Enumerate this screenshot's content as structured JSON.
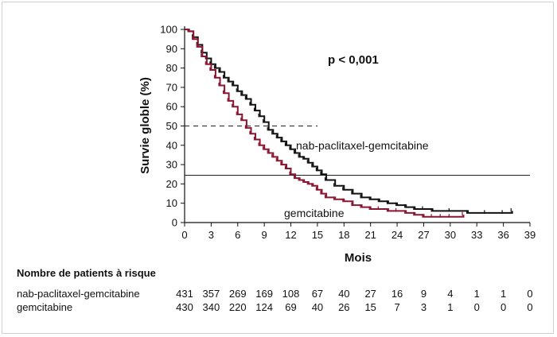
{
  "chart_data": {
    "type": "line",
    "title": "",
    "xlabel": "Mois",
    "ylabel": "Survie globle (%)",
    "xlim": [
      0,
      39
    ],
    "ylim": [
      0,
      100
    ],
    "x_ticks": [
      0,
      3,
      6,
      9,
      12,
      15,
      18,
      21,
      24,
      27,
      30,
      33,
      36,
      39
    ],
    "y_ticks": [
      0,
      10,
      20,
      30,
      40,
      50,
      60,
      70,
      80,
      90,
      100
    ],
    "grid": false,
    "annotation": "p < 0,001",
    "series": [
      {
        "name": "nab-paclitaxel-gemcitabine",
        "color": "#111111",
        "x": [
          0,
          0.5,
          1,
          1.5,
          2,
          2.5,
          3,
          3.5,
          4,
          4.5,
          5,
          5.5,
          6,
          6.5,
          7,
          7.5,
          8,
          8.5,
          9,
          9.5,
          10,
          10.5,
          11,
          11.5,
          12,
          12.5,
          13,
          13.5,
          14,
          14.5,
          15,
          15.5,
          16,
          17,
          18,
          19,
          20,
          21,
          22,
          23,
          24,
          25,
          26,
          27,
          28,
          30,
          32,
          34,
          36,
          37
        ],
        "y": [
          100,
          99,
          96,
          92,
          88,
          85,
          82,
          80,
          78,
          75,
          73,
          71,
          68,
          66,
          64,
          61,
          58,
          55,
          52,
          48,
          46,
          44,
          42,
          40,
          38,
          36,
          34,
          33,
          31,
          29,
          27,
          25,
          22,
          19,
          17,
          15,
          13,
          12,
          11,
          10,
          9,
          8,
          7,
          7,
          6,
          6,
          5,
          5,
          5,
          6
        ]
      },
      {
        "name": "gemcitabine",
        "color": "#8a1530",
        "x": [
          0,
          0.5,
          1,
          1.5,
          2,
          2.5,
          3,
          3.5,
          4,
          4.5,
          5,
          5.5,
          6,
          6.5,
          7,
          7.5,
          8,
          8.5,
          9,
          9.5,
          10,
          10.5,
          11,
          11.5,
          12,
          12.5,
          13,
          13.5,
          14,
          14.5,
          15,
          15.5,
          16,
          17,
          18,
          19,
          20,
          21,
          22,
          23,
          24,
          25,
          26,
          27,
          28,
          29,
          30,
          31.5
        ],
        "y": [
          100,
          99,
          95,
          91,
          86,
          82,
          79,
          75,
          71,
          67,
          63,
          60,
          56,
          53,
          49,
          46,
          43,
          40,
          38,
          36,
          34,
          32,
          30,
          28,
          25,
          23,
          22,
          21,
          20,
          19,
          17,
          15,
          13,
          12,
          11,
          9,
          8,
          7,
          7,
          6,
          6,
          5,
          4,
          3,
          3,
          3,
          3,
          4
        ]
      }
    ],
    "reference_lines": [
      {
        "label": "median-nab",
        "y": 50,
        "x_end": 15,
        "style": "dashed"
      },
      {
        "label": "median-gem",
        "y": 24.5,
        "x_end": 39,
        "style": "solid"
      }
    ]
  },
  "risk_table": {
    "title": "Nombre de patients à risque",
    "rows": [
      {
        "label": "nab-paclitaxel-gemcitabine",
        "values": [
          "431",
          "357",
          "269",
          "169",
          "108",
          "67",
          "40",
          "27",
          "16",
          "9",
          "4",
          "1",
          "1",
          "0"
        ]
      },
      {
        "label": "gemcitabine",
        "values": [
          "430",
          "340",
          "220",
          "124",
          "69",
          "40",
          "26",
          "15",
          "7",
          "3",
          "1",
          "0",
          "0",
          "0"
        ]
      }
    ]
  }
}
